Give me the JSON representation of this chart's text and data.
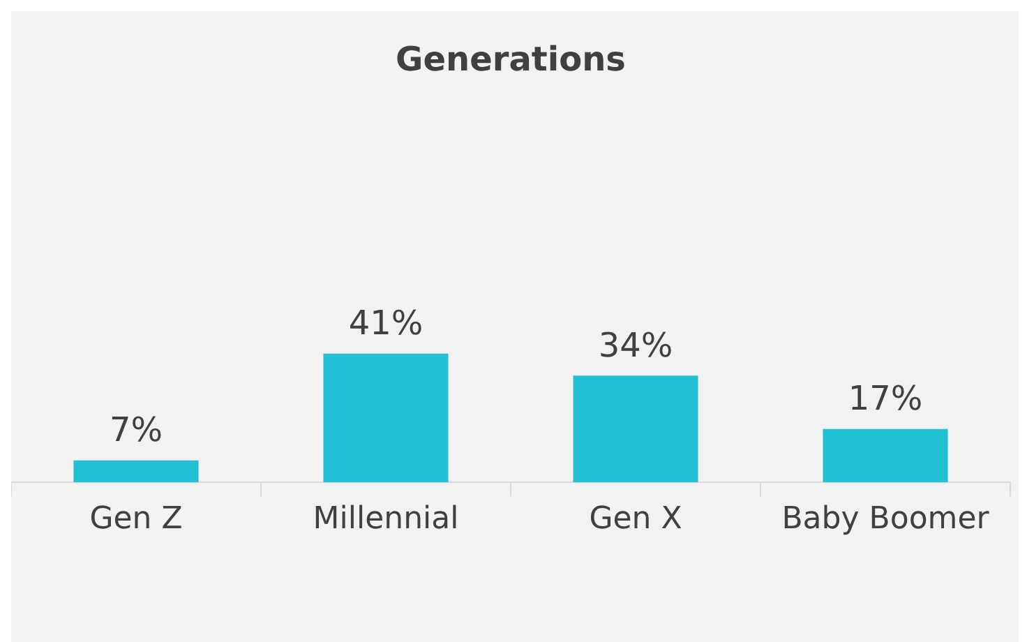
{
  "chart_data": {
    "type": "bar",
    "title": "Generations",
    "categories": [
      "Gen Z",
      "Millennial",
      "Gen X",
      "Baby Boomer"
    ],
    "values": [
      7,
      41,
      34,
      17
    ],
    "color": "#22c0d4",
    "value_labels": [
      "7%",
      "41%",
      "34%",
      "17%"
    ],
    "grid": false,
    "legend": false
  }
}
